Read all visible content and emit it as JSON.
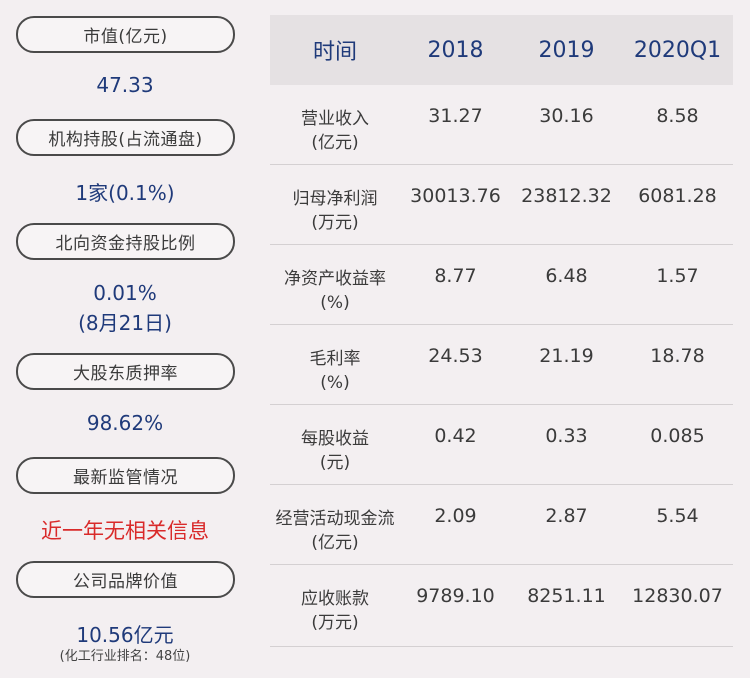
{
  "left": {
    "items": [
      {
        "label": "市值(亿元)",
        "value": "47.33"
      },
      {
        "label": "机构持股(占流通盘)",
        "value": "1家(0.1%)"
      },
      {
        "label": "北向资金持股比例",
        "value": "0.01%",
        "value2": "(8月21日)"
      },
      {
        "label": "大股东质押率",
        "value": "98.62%"
      },
      {
        "label": "最新监管情况",
        "value": "近一年无相关信息"
      },
      {
        "label": "公司品牌价值",
        "value": "10.56亿元",
        "note": "(化工行业排名：48位)"
      }
    ]
  },
  "table": {
    "headers": [
      "时间",
      "2018",
      "2019",
      "2020Q1"
    ],
    "rows": [
      {
        "label1": "营业收入",
        "label2": "(亿元)",
        "values": [
          "31.27",
          "30.16",
          "8.58"
        ]
      },
      {
        "label1": "归母净利润",
        "label2": "(万元)",
        "values": [
          "30013.76",
          "23812.32",
          "6081.28"
        ]
      },
      {
        "label1": "净资产收益率",
        "label2": "(%)",
        "values": [
          "8.77",
          "6.48",
          "1.57"
        ]
      },
      {
        "label1": "毛利率",
        "label2": "(%)",
        "values": [
          "24.53",
          "21.19",
          "18.78"
        ]
      },
      {
        "label1": "每股收益",
        "label2": "(元)",
        "values": [
          "0.42",
          "0.33",
          "0.085"
        ]
      },
      {
        "label1": "经营活动现金流",
        "label2": "(亿元)",
        "values": [
          "2.09",
          "2.87",
          "5.54"
        ]
      },
      {
        "label1": "应收账款",
        "label2": "(万元)",
        "values": [
          "9789.10",
          "8251.11",
          "12830.07"
        ]
      }
    ]
  }
}
